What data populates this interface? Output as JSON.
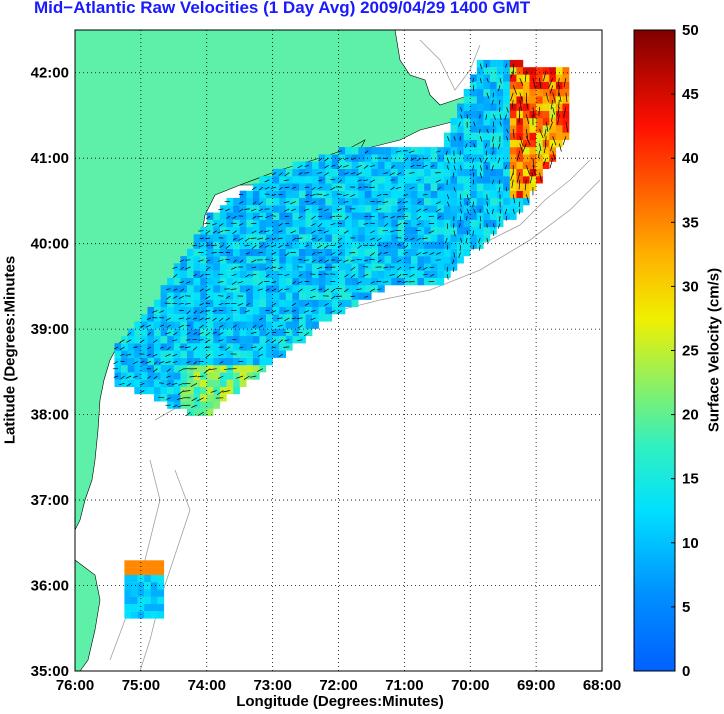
{
  "title": "Mid−Atlantic Raw Velocities (1 Day Avg) 2009/04/29 1400 GMT",
  "xlabel": "Longitude (Degrees:Minutes)",
  "ylabel": "Latitude (Degrees:Minutes",
  "colorbar": {
    "label": "Surface Velocity (cm/s)",
    "ticks": [
      "0",
      "5",
      "10",
      "15",
      "20",
      "25",
      "30",
      "35",
      "40",
      "45",
      "50"
    ],
    "range": [
      0,
      50
    ],
    "colormap": "jet"
  },
  "map": {
    "lon_range": [
      -76,
      -68
    ],
    "lat_range": [
      35,
      42.5
    ],
    "x_ticks": [
      "76:00",
      "75:00",
      "74:00",
      "73:00",
      "72:00",
      "71:00",
      "70:00",
      "69:00",
      "68:00"
    ],
    "y_ticks": [
      "35:00",
      "36:00",
      "37:00",
      "38:00",
      "39:00",
      "40:00",
      "41:00",
      "42:00"
    ],
    "grid": "dotted",
    "land_color": "#5ef0a8",
    "bathymetry_color": "#a0a0a0"
  }
}
